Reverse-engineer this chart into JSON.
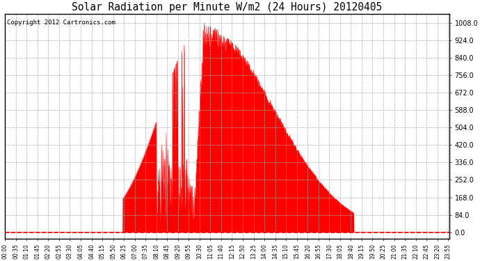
{
  "title": "Solar Radiation per Minute W/m2 (24 Hours) 20120405",
  "copyright": "Copyright 2012 Cartronics.com",
  "fill_color": "#FF0000",
  "line_color": "#FF0000",
  "background_color": "#FFFFFF",
  "grid_color": "#AAAAAA",
  "dashed_line_color": "#FF0000",
  "yticks": [
    0.0,
    84.0,
    168.0,
    252.0,
    336.0,
    420.0,
    504.0,
    588.0,
    672.0,
    756.0,
    840.0,
    924.0,
    1008.0
  ],
  "ymin": -30.0,
  "ymax": 1050.0,
  "total_minutes": 1440,
  "sunrise_minute": 380,
  "sunset_minute": 1130,
  "peak_minute": 645,
  "peak_value": 1008.0,
  "xtick_step": 35
}
